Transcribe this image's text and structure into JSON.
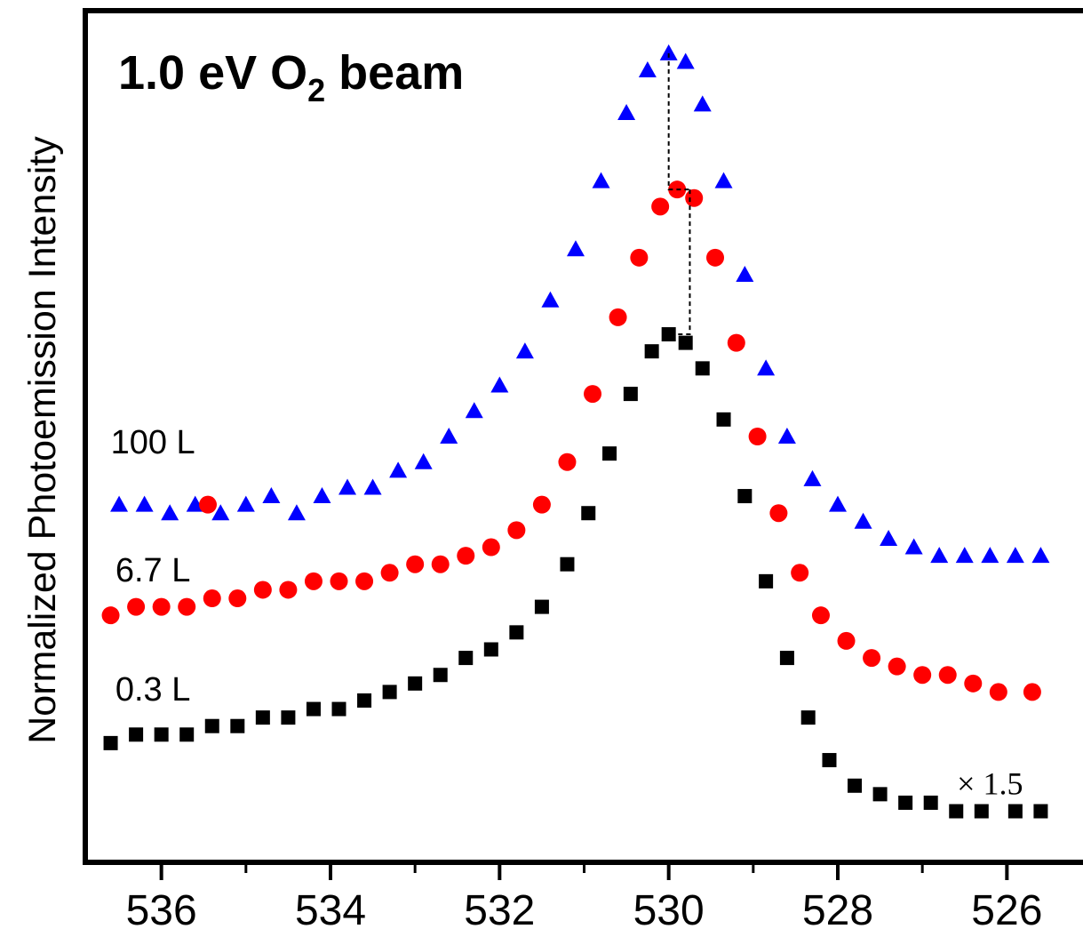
{
  "chart_data": {
    "type": "scatter",
    "title_parts": {
      "pre": "1.0 eV O",
      "sub": "2",
      "post": " beam"
    },
    "xlabel": "",
    "ylabel": "Normalized Photoemission Intensity",
    "xlim": [
      536.9,
      525.1
    ],
    "x_reversed": true,
    "ylim": [
      0,
      1
    ],
    "x_ticks": [
      "536",
      "534",
      "532",
      "530",
      "528",
      "526"
    ],
    "x_tick_values": [
      536,
      534,
      532,
      530,
      528,
      526
    ],
    "x_minor_tick_values": [
      535,
      533,
      531,
      529,
      527
    ],
    "grid": false,
    "series": [
      {
        "name": "100 L",
        "marker": "triangle",
        "color": "#0000ff",
        "points": [
          [
            536.5,
            0.42
          ],
          [
            536.2,
            0.42
          ],
          [
            535.9,
            0.41
          ],
          [
            535.6,
            0.42
          ],
          [
            535.3,
            0.41
          ],
          [
            535.0,
            0.42
          ],
          [
            534.7,
            0.43
          ],
          [
            534.4,
            0.41
          ],
          [
            534.1,
            0.43
          ],
          [
            533.8,
            0.44
          ],
          [
            533.5,
            0.44
          ],
          [
            533.2,
            0.46
          ],
          [
            532.9,
            0.47
          ],
          [
            532.6,
            0.5
          ],
          [
            532.3,
            0.53
          ],
          [
            532.0,
            0.56
          ],
          [
            531.7,
            0.6
          ],
          [
            531.4,
            0.66
          ],
          [
            531.1,
            0.72
          ],
          [
            530.8,
            0.8
          ],
          [
            530.5,
            0.88
          ],
          [
            530.25,
            0.93
          ],
          [
            530.0,
            0.95
          ],
          [
            529.8,
            0.94
          ],
          [
            529.6,
            0.89
          ],
          [
            529.35,
            0.8
          ],
          [
            529.1,
            0.69
          ],
          [
            528.85,
            0.58
          ],
          [
            528.6,
            0.5
          ],
          [
            528.3,
            0.45
          ],
          [
            528.0,
            0.42
          ],
          [
            527.7,
            0.4
          ],
          [
            527.4,
            0.38
          ],
          [
            527.1,
            0.37
          ],
          [
            526.8,
            0.36
          ],
          [
            526.5,
            0.36
          ],
          [
            526.2,
            0.36
          ],
          [
            525.9,
            0.36
          ],
          [
            525.6,
            0.36
          ]
        ]
      },
      {
        "name": "6.7 L",
        "marker": "circle",
        "color": "#ff0000",
        "points": [
          [
            536.6,
            0.29
          ],
          [
            536.3,
            0.3
          ],
          [
            536.0,
            0.3
          ],
          [
            535.7,
            0.3
          ],
          [
            535.4,
            0.31
          ],
          [
            535.1,
            0.31
          ],
          [
            534.8,
            0.32
          ],
          [
            534.5,
            0.32
          ],
          [
            534.2,
            0.33
          ],
          [
            533.9,
            0.33
          ],
          [
            533.6,
            0.33
          ],
          [
            533.3,
            0.34
          ],
          [
            533.0,
            0.35
          ],
          [
            532.7,
            0.35
          ],
          [
            532.4,
            0.36
          ],
          [
            532.1,
            0.37
          ],
          [
            531.8,
            0.39
          ],
          [
            531.5,
            0.42
          ],
          [
            531.2,
            0.47
          ],
          [
            530.9,
            0.55
          ],
          [
            530.6,
            0.64
          ],
          [
            530.35,
            0.71
          ],
          [
            530.1,
            0.77
          ],
          [
            529.9,
            0.79
          ],
          [
            529.7,
            0.78
          ],
          [
            529.45,
            0.71
          ],
          [
            529.2,
            0.61
          ],
          [
            528.95,
            0.5
          ],
          [
            528.7,
            0.41
          ],
          [
            528.45,
            0.34
          ],
          [
            528.2,
            0.29
          ],
          [
            527.9,
            0.26
          ],
          [
            527.6,
            0.24
          ],
          [
            527.3,
            0.23
          ],
          [
            527.0,
            0.22
          ],
          [
            526.7,
            0.22
          ],
          [
            526.4,
            0.21
          ],
          [
            526.1,
            0.2
          ],
          [
            525.7,
            0.2
          ]
        ]
      },
      {
        "name": "0.3 L",
        "marker": "square",
        "color": "#000000",
        "points": [
          [
            536.6,
            0.14
          ],
          [
            536.3,
            0.15
          ],
          [
            536.0,
            0.15
          ],
          [
            535.7,
            0.15
          ],
          [
            535.4,
            0.16
          ],
          [
            535.1,
            0.16
          ],
          [
            534.8,
            0.17
          ],
          [
            534.5,
            0.17
          ],
          [
            534.2,
            0.18
          ],
          [
            533.9,
            0.18
          ],
          [
            533.6,
            0.19
          ],
          [
            533.3,
            0.2
          ],
          [
            533.0,
            0.21
          ],
          [
            532.7,
            0.22
          ],
          [
            532.4,
            0.24
          ],
          [
            532.1,
            0.25
          ],
          [
            531.8,
            0.27
          ],
          [
            531.5,
            0.3
          ],
          [
            531.2,
            0.35
          ],
          [
            530.95,
            0.41
          ],
          [
            530.7,
            0.48
          ],
          [
            530.45,
            0.55
          ],
          [
            530.2,
            0.6
          ],
          [
            530.0,
            0.62
          ],
          [
            529.8,
            0.61
          ],
          [
            529.6,
            0.58
          ],
          [
            529.35,
            0.52
          ],
          [
            529.1,
            0.43
          ],
          [
            528.85,
            0.33
          ],
          [
            528.6,
            0.24
          ],
          [
            528.35,
            0.17
          ],
          [
            528.1,
            0.12
          ],
          [
            527.8,
            0.09
          ],
          [
            527.5,
            0.08
          ],
          [
            527.2,
            0.07
          ],
          [
            526.9,
            0.07
          ],
          [
            526.6,
            0.06
          ],
          [
            526.3,
            0.06
          ],
          [
            525.9,
            0.06
          ],
          [
            525.6,
            0.06
          ]
        ]
      }
    ],
    "peak_guides": [
      {
        "from_x": 530.0,
        "from_y": 0.95,
        "to_x": 529.75,
        "to_y": 0.79
      },
      {
        "from_x": 529.75,
        "from_y": 0.79,
        "to_x": 529.95,
        "to_y": 0.62
      }
    ],
    "annotations": [
      {
        "text": "100 L",
        "x": 536.1,
        "y": 0.48
      },
      {
        "text": "6.7 L",
        "x": 536.1,
        "y": 0.33
      },
      {
        "text": "0.3 L",
        "x": 536.1,
        "y": 0.19
      },
      {
        "text": "× 1.5",
        "x": 526.2,
        "y": 0.08
      }
    ],
    "stray_marker": {
      "x": 535.45,
      "y": 0.42,
      "marker": "circle",
      "color": "#ff0000"
    }
  }
}
